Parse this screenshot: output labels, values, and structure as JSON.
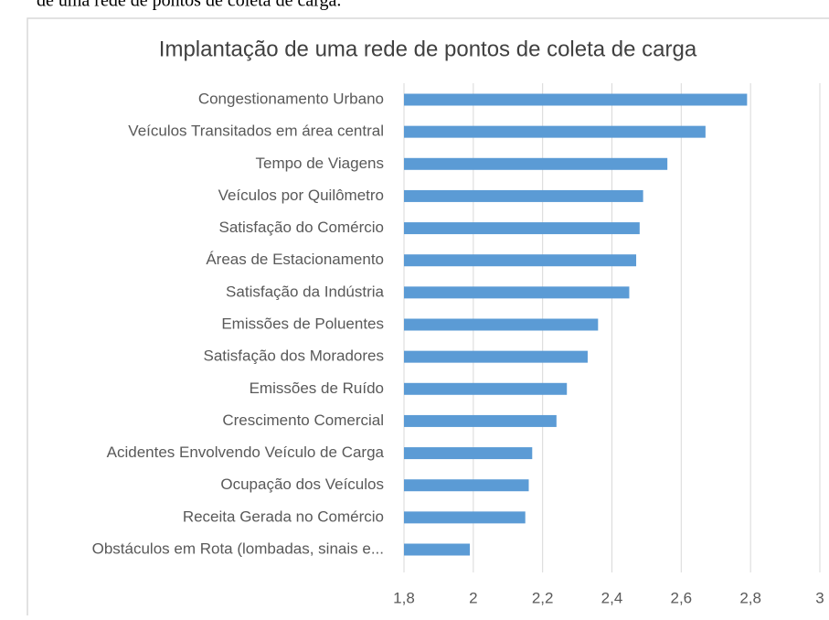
{
  "header_fragment": "de uma rede de pontos de coleta de carga.",
  "chart_data": {
    "type": "barh",
    "title": "Implantação de uma rede de pontos de coleta de carga",
    "categories": [
      "Congestionamento Urbano",
      "Veículos Transitados em área central",
      "Tempo de Viagens",
      "Veículos por Quilômetro",
      "Satisfação do Comércio",
      "Áreas de Estacionamento",
      "Satisfação da Indústria",
      "Emissões de Poluentes",
      "Satisfação dos Moradores",
      "Emissões de Ruído",
      "Crescimento Comercial",
      "Acidentes Envolvendo Veículo de Carga",
      "Ocupação dos Veículos",
      "Receita Gerada no Comércio",
      "Obstáculos em Rota (lombadas, sinais e..."
    ],
    "values": [
      2.79,
      2.67,
      2.56,
      2.49,
      2.48,
      2.47,
      2.45,
      2.36,
      2.33,
      2.27,
      2.24,
      2.17,
      2.16,
      2.15,
      1.99
    ],
    "color": "#5b9bd5",
    "xlim": [
      1.8,
      3
    ],
    "xticks": [
      {
        "value": 1.8,
        "label": "1,8"
      },
      2,
      {
        "value": 2.2,
        "label": "2,2"
      },
      {
        "value": 2.4,
        "label": "2,4"
      },
      {
        "value": 2.6,
        "label": "2,6"
      },
      {
        "value": 2.8,
        "label": "2,8"
      },
      3
    ],
    "grid": true
  }
}
